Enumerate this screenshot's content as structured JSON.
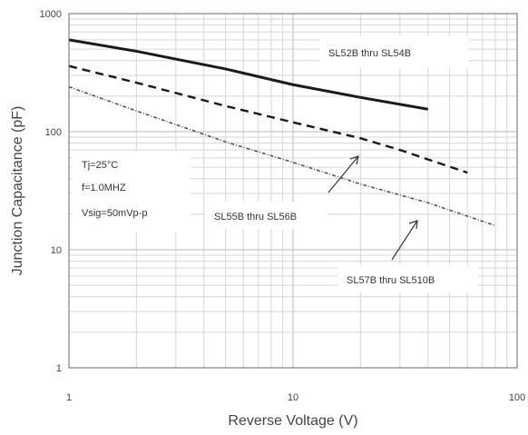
{
  "chart_data": {
    "type": "line",
    "title": "",
    "xlabel": "Reverse Voltage (V)",
    "ylabel": "Junction Capacitance (pF)",
    "xscale": "log",
    "yscale": "log",
    "xlim": [
      1,
      100
    ],
    "ylim": [
      1,
      1000
    ],
    "x_ticks": [
      "1",
      "10",
      "100"
    ],
    "y_ticks": [
      "1",
      "10",
      "100",
      "1000"
    ],
    "grid": true,
    "series": [
      {
        "name": "SL52B thru SL54B",
        "style": "solid",
        "color": "#1a1a1a",
        "x": [
          1,
          2,
          5,
          10,
          20,
          40
        ],
        "y": [
          600,
          480,
          340,
          250,
          195,
          155
        ]
      },
      {
        "name": "SL55B thru SL56B",
        "style": "dashed",
        "color": "#1a1a1a",
        "x": [
          1,
          2,
          5,
          10,
          20,
          30,
          60
        ],
        "y": [
          360,
          260,
          165,
          120,
          88,
          70,
          45
        ]
      },
      {
        "name": "SL57B thru SL510B",
        "style": "dotted",
        "color": "#555555",
        "x": [
          1,
          2,
          5,
          10,
          20,
          40,
          80
        ],
        "y": [
          240,
          150,
          82,
          55,
          36,
          25,
          16
        ]
      }
    ],
    "annotations": {
      "conditions": [
        "Tj=25°C",
        "f=1.0MHZ",
        "Vsig=50mVp-p"
      ],
      "label_top": "SL52B thru SL54B",
      "label_mid": "SL55B thru SL56B",
      "label_bot": "SL57B thru SL510B"
    }
  }
}
